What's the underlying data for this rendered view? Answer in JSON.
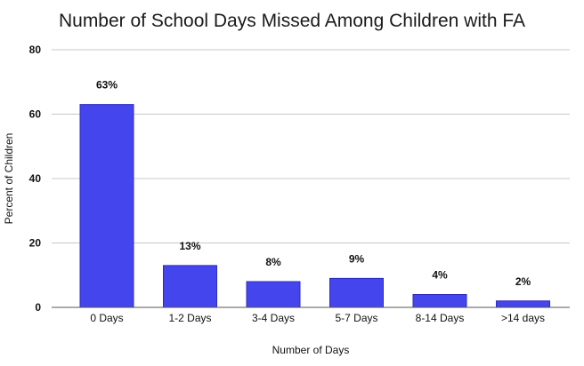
{
  "chart_data": {
    "type": "bar",
    "title": "Number of School Days Missed Among Children with FA",
    "xlabel": "Number of Days",
    "ylabel": "Percent of Children",
    "categories": [
      "0 Days",
      "1-2 Days",
      "3-4 Days",
      "5-7 Days",
      "8-14 Days",
      ">14 days"
    ],
    "values": [
      63,
      13,
      8,
      9,
      4,
      2
    ],
    "data_labels": [
      "63%",
      "13%",
      "8%",
      "9%",
      "4%",
      "2%"
    ],
    "ylim": [
      0,
      80
    ],
    "yticks": [
      0,
      20,
      40,
      60,
      80
    ],
    "grid": true,
    "bar_color": "#4545ee"
  }
}
